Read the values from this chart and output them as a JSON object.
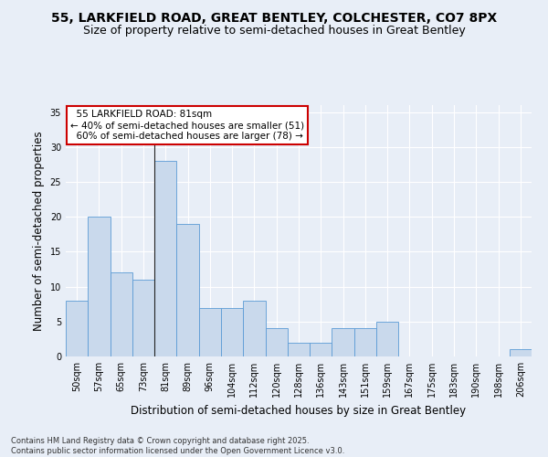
{
  "title1": "55, LARKFIELD ROAD, GREAT BENTLEY, COLCHESTER, CO7 8PX",
  "title2": "Size of property relative to semi-detached houses in Great Bentley",
  "xlabel": "Distribution of semi-detached houses by size in Great Bentley",
  "ylabel": "Number of semi-detached properties",
  "categories": [
    "50sqm",
    "57sqm",
    "65sqm",
    "73sqm",
    "81sqm",
    "89sqm",
    "96sqm",
    "104sqm",
    "112sqm",
    "120sqm",
    "128sqm",
    "136sqm",
    "143sqm",
    "151sqm",
    "159sqm",
    "167sqm",
    "175sqm",
    "183sqm",
    "190sqm",
    "198sqm",
    "206sqm"
  ],
  "values": [
    8,
    20,
    12,
    11,
    28,
    19,
    7,
    7,
    8,
    4,
    2,
    2,
    4,
    4,
    5,
    0,
    0,
    0,
    0,
    0,
    1
  ],
  "bar_color": "#c9d9ec",
  "bar_edge_color": "#5b9bd5",
  "highlight_index": 4,
  "highlight_line_color": "#222222",
  "annotation_text": "  55 LARKFIELD ROAD: 81sqm\n← 40% of semi-detached houses are smaller (51)\n  60% of semi-detached houses are larger (78) →",
  "annotation_box_color": "#ffffff",
  "annotation_box_edge_color": "#cc0000",
  "ylim": [
    0,
    36
  ],
  "yticks": [
    0,
    5,
    10,
    15,
    20,
    25,
    30,
    35
  ],
  "background_color": "#e8eef7",
  "grid_color": "#ffffff",
  "footnote": "Contains HM Land Registry data © Crown copyright and database right 2025.\nContains public sector information licensed under the Open Government Licence v3.0.",
  "title_fontsize": 10,
  "subtitle_fontsize": 9,
  "label_fontsize": 8.5,
  "tick_fontsize": 7,
  "annotation_fontsize": 7.5,
  "footnote_fontsize": 6
}
